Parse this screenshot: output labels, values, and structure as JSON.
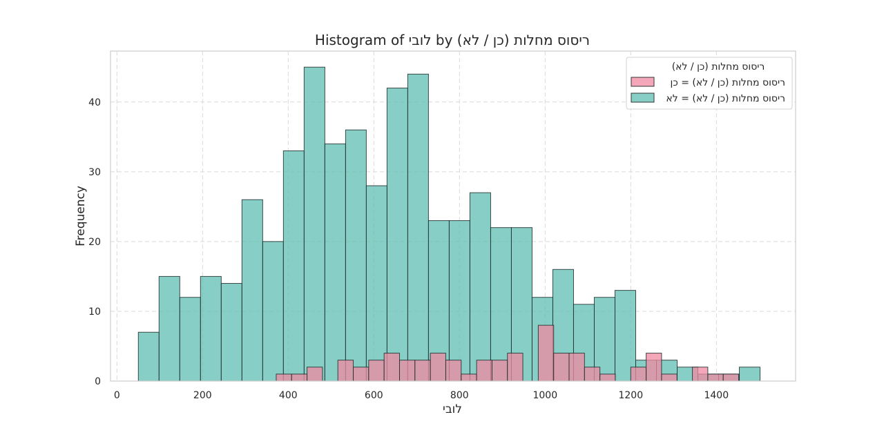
{
  "chart_data": {
    "type": "histogram",
    "title": "Histogram of לובי by ריסוס מחלות (כן / לא)",
    "xlabel": "לובי",
    "ylabel": "Frequency",
    "xlim": [
      -15,
      1585
    ],
    "ylim": [
      0,
      47.3
    ],
    "xticks": [
      0,
      200,
      400,
      600,
      800,
      1000,
      1200,
      1400
    ],
    "yticks": [
      0,
      10,
      20,
      30,
      40
    ],
    "grid": true,
    "legend": {
      "title": "ריסוס מחלות (כן / לא)",
      "placement": "top-right"
    },
    "series": [
      {
        "name": "ריסוס מחלות (כן / לא) = כן",
        "color": "#f08aa0",
        "bin_width": 36,
        "bins": [
          {
            "x0": 372,
            "count": 1
          },
          {
            "x0": 408,
            "count": 1
          },
          {
            "x0": 444,
            "count": 2
          },
          {
            "x0": 516,
            "count": 3
          },
          {
            "x0": 552,
            "count": 2
          },
          {
            "x0": 588,
            "count": 3
          },
          {
            "x0": 624,
            "count": 4
          },
          {
            "x0": 660,
            "count": 3
          },
          {
            "x0": 696,
            "count": 3
          },
          {
            "x0": 732,
            "count": 4
          },
          {
            "x0": 768,
            "count": 3
          },
          {
            "x0": 804,
            "count": 1
          },
          {
            "x0": 840,
            "count": 3
          },
          {
            "x0": 876,
            "count": 3
          },
          {
            "x0": 912,
            "count": 4
          },
          {
            "x0": 984,
            "count": 8
          },
          {
            "x0": 1020,
            "count": 4
          },
          {
            "x0": 1056,
            "count": 4
          },
          {
            "x0": 1092,
            "count": 2
          },
          {
            "x0": 1128,
            "count": 1
          },
          {
            "x0": 1200,
            "count": 2
          },
          {
            "x0": 1236,
            "count": 4
          },
          {
            "x0": 1272,
            "count": 1
          },
          {
            "x0": 1344,
            "count": 2
          },
          {
            "x0": 1380,
            "count": 1
          },
          {
            "x0": 1416,
            "count": 1
          }
        ]
      },
      {
        "name": "ריסוס מחלות (כן / לא) = לא",
        "color": "#5fbfb3",
        "bin_width": 48.4,
        "bins": [
          {
            "x0": 50,
            "count": 7
          },
          {
            "x0": 98.4,
            "count": 15
          },
          {
            "x0": 146.8,
            "count": 12
          },
          {
            "x0": 195.2,
            "count": 15
          },
          {
            "x0": 243.6,
            "count": 14
          },
          {
            "x0": 292,
            "count": 26
          },
          {
            "x0": 340.4,
            "count": 20
          },
          {
            "x0": 388.8,
            "count": 33
          },
          {
            "x0": 437.2,
            "count": 45
          },
          {
            "x0": 485.6,
            "count": 34
          },
          {
            "x0": 534,
            "count": 36
          },
          {
            "x0": 582.4,
            "count": 28
          },
          {
            "x0": 630.8,
            "count": 42
          },
          {
            "x0": 679.2,
            "count": 44
          },
          {
            "x0": 727.6,
            "count": 23
          },
          {
            "x0": 776,
            "count": 23
          },
          {
            "x0": 824.4,
            "count": 27
          },
          {
            "x0": 872.8,
            "count": 22
          },
          {
            "x0": 921.2,
            "count": 22
          },
          {
            "x0": 969.6,
            "count": 12
          },
          {
            "x0": 1018,
            "count": 16
          },
          {
            "x0": 1066.4,
            "count": 11
          },
          {
            "x0": 1114.8,
            "count": 12
          },
          {
            "x0": 1163.2,
            "count": 13
          },
          {
            "x0": 1211.6,
            "count": 3
          },
          {
            "x0": 1260,
            "count": 3
          },
          {
            "x0": 1308.4,
            "count": 2
          },
          {
            "x0": 1356.8,
            "count": 1
          },
          {
            "x0": 1405.2,
            "count": 1
          },
          {
            "x0": 1453.6,
            "count": 2
          }
        ]
      }
    ]
  }
}
